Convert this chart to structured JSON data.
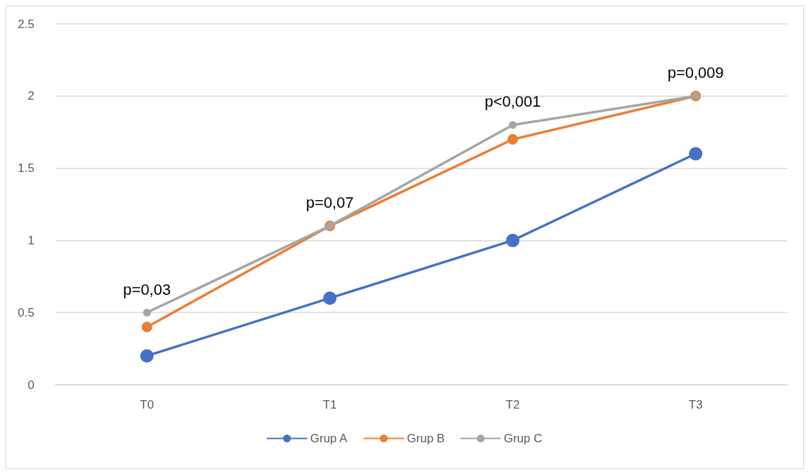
{
  "chart_data": {
    "type": "line",
    "categories": [
      "T0",
      "T1",
      "T2",
      "T3"
    ],
    "series": [
      {
        "name": "Grup A",
        "color": "#4472c4",
        "values": [
          0.2,
          0.6,
          1.0,
          1.6
        ]
      },
      {
        "name": "Grup B",
        "color": "#ed7d31",
        "values": [
          0.4,
          1.1,
          1.7,
          2.0
        ]
      },
      {
        "name": "Grup C",
        "color": "#a5a5a5",
        "values": [
          0.5,
          1.1,
          1.8,
          2.0
        ]
      }
    ],
    "annotations": [
      {
        "text": "p=0,03",
        "x": "T0",
        "y": 0.5
      },
      {
        "text": "p=0,07",
        "x": "T1",
        "y": 1.1
      },
      {
        "text": "p<0,001",
        "x": "T2",
        "y": 1.8
      },
      {
        "text": "p=0,009",
        "x": "T3",
        "y": 2.0
      }
    ],
    "ylim": [
      0,
      2.5
    ],
    "yticks": [
      0,
      0.5,
      1,
      1.5,
      2,
      2.5
    ],
    "grid": "y",
    "legend": "bottom",
    "marker": "circle",
    "line_style": "solid"
  }
}
